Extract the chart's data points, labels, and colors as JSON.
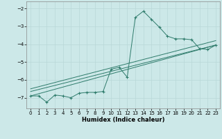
{
  "xlabel": "Humidex (Indice chaleur)",
  "bg_color": "#cce8e8",
  "grid_color": "#b8d8d8",
  "line_color": "#2e7b6b",
  "xlim": [
    -0.5,
    23.5
  ],
  "ylim": [
    -7.6,
    -1.6
  ],
  "yticks": [
    -7,
    -6,
    -5,
    -4,
    -3,
    -2
  ],
  "xticks": [
    0,
    1,
    2,
    3,
    4,
    5,
    6,
    7,
    8,
    9,
    10,
    11,
    12,
    13,
    14,
    15,
    16,
    17,
    18,
    19,
    20,
    21,
    22,
    23
  ],
  "series1_x": [
    0,
    1,
    2,
    3,
    4,
    5,
    6,
    7,
    8,
    9,
    10,
    11,
    12,
    13,
    14,
    15,
    16,
    17,
    18,
    19,
    20,
    21,
    22,
    23
  ],
  "series1_y": [
    -6.9,
    -6.9,
    -7.25,
    -6.85,
    -6.9,
    -7.0,
    -6.75,
    -6.7,
    -6.7,
    -6.65,
    -5.4,
    -5.3,
    -5.85,
    -2.5,
    -2.15,
    -2.6,
    -3.05,
    -3.55,
    -3.7,
    -3.7,
    -3.75,
    -4.25,
    -4.3,
    -4.05
  ],
  "series2_x": [
    0,
    23
  ],
  "series2_y": [
    -6.9,
    -4.05
  ],
  "series3_x": [
    0,
    23
  ],
  "series3_y": [
    -6.65,
    -4.05
  ],
  "series4_x": [
    0,
    23
  ],
  "series4_y": [
    -6.5,
    -3.8
  ]
}
